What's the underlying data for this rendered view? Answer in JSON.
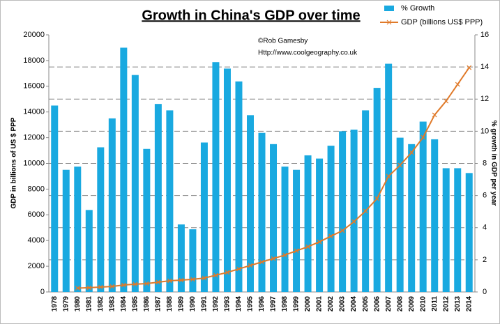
{
  "chart_data": {
    "type": "bar",
    "title": "Growth in China's GDP over time",
    "annotations": [
      "©Rob Gamesby",
      "Http://www.coolgeography.co.uk"
    ],
    "ylabel": "GDP in billions of US $ PPP",
    "y2label": "% growth in GDP per year",
    "categories": [
      "1978",
      "1979",
      "1980",
      "1981",
      "1982",
      "1983",
      "1984",
      "1985",
      "1986",
      "1987",
      "1988",
      "1989",
      "1990",
      "1991",
      "1992",
      "1993",
      "1994",
      "1995",
      "1996",
      "1997",
      "1998",
      "1999",
      "2000",
      "2001",
      "2002",
      "2003",
      "2004",
      "2005",
      "2006",
      "2007",
      "2008",
      "2009",
      "2010",
      "2011",
      "2012",
      "2013",
      "2014"
    ],
    "series": [
      {
        "name": "% Growth",
        "type": "bar",
        "axis": "y2",
        "color": "#19a9e0",
        "values": [
          11.6,
          7.6,
          7.8,
          5.1,
          9.0,
          10.8,
          15.2,
          13.5,
          8.9,
          11.7,
          11.3,
          4.2,
          3.9,
          9.3,
          14.3,
          13.9,
          13.1,
          11.0,
          9.9,
          9.2,
          7.8,
          7.6,
          8.5,
          8.3,
          9.1,
          10.0,
          10.1,
          11.3,
          12.7,
          14.2,
          9.6,
          9.2,
          10.6,
          9.5,
          7.7,
          7.7,
          7.4
        ]
      },
      {
        "name": "GDP (billions US$ PPP)",
        "type": "line",
        "axis": "y",
        "color": "#e07a2a",
        "values": [
          null,
          null,
          300,
          330,
          380,
          430,
          540,
          600,
          650,
          760,
          870,
          920,
          980,
          1080,
          1300,
          1520,
          1790,
          2060,
          2330,
          2600,
          2870,
          3200,
          3520,
          3900,
          4340,
          4770,
          5470,
          6290,
          7260,
          9000,
          9860,
          10840,
          12030,
          13770,
          14850,
          16150,
          17450
        ]
      }
    ],
    "ylim": [
      0,
      20000
    ],
    "yticks": [
      0,
      2000,
      4000,
      6000,
      8000,
      10000,
      12000,
      14000,
      16000,
      18000,
      20000
    ],
    "y2lim": [
      0,
      16
    ],
    "y2ticks": [
      0,
      2,
      4,
      6,
      8,
      10,
      12,
      14,
      16
    ],
    "grid": true,
    "legend": "top-right"
  }
}
